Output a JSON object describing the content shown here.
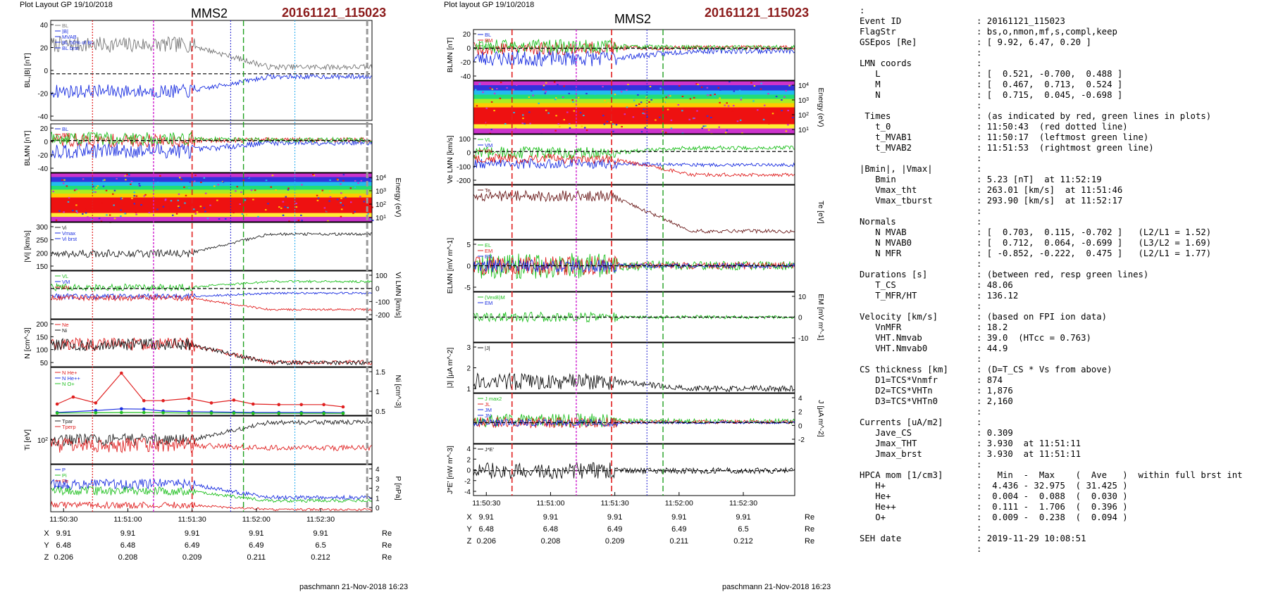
{
  "left_panel": {
    "corner_label": "Plot Layout GP 19/10/2018",
    "spacecraft": "MMS2",
    "event": "20161121_115023",
    "footer": "paschmann 21-Nov-2018 16:23"
  },
  "middle_panel": {
    "corner_label": "Plot layout GP 19/10/2018",
    "spacecraft": "MMS2",
    "event": "20161121_115023",
    "footer": "paschmann 21-Nov-2018 16:23"
  },
  "chart_data": [
    {
      "type": "line",
      "figure": "left",
      "x_ticks": [
        "11:50:30",
        "11:51:00",
        "11:51:30",
        "11:52:00",
        "11:52:30"
      ],
      "coords": {
        "rows": [
          "X",
          "Y",
          "Z"
        ],
        "unit": "Re",
        "values": [
          [
            "9.91",
            "9.91",
            "9.91",
            "9.91",
            "9.91"
          ],
          [
            "6.48",
            "6.48",
            "6.49",
            "6.49",
            "6.5"
          ],
          [
            "0.206",
            "0.208",
            "0.209",
            "0.211",
            "0.212"
          ]
        ]
      },
      "marker_colors": {
        "t0": "#e02020",
        "mvab": "#20a020",
        "magenta": "#d020d0",
        "blue": "#2020d0"
      },
      "panels": [
        {
          "name": "b-magnitude",
          "ylabel": "BL,|B| [nT]",
          "yticks": [
            "40",
            "20",
            "0",
            "-20",
            "-40"
          ],
          "ylim": [
            -48,
            55
          ],
          "legend": [
            "BL",
            "|B|",
            "MVAB",
            "BL 50% of BL",
            "BL brst"
          ],
          "ref_line": 0,
          "series": [
            {
              "name": "|B|",
              "color": "#777777",
              "base": 30,
              "amp": 8,
              "late": 7
            },
            {
              "name": "BL",
              "color": "#1a2ee0",
              "base": -18,
              "amp": 7,
              "late": -3
            }
          ]
        },
        {
          "name": "b-lmn",
          "ylabel": "BLMN [nT]",
          "yticks": [
            "20",
            "0",
            "-20",
            "-40"
          ],
          "ylim": [
            -48,
            25
          ],
          "legend": [
            "BL",
            "BM",
            "BN"
          ],
          "ref_line": 0,
          "series": [
            {
              "name": "BL",
              "color": "#1a2ee0",
              "base": -15,
              "amp": 12,
              "late": -3
            },
            {
              "name": "BM",
              "color": "#e02020",
              "base": 0,
              "amp": 10,
              "late": 1
            },
            {
              "name": "BN",
              "color": "#20c020",
              "base": 3,
              "amp": 10,
              "late": 1
            }
          ]
        },
        {
          "name": "ion-spectrogram",
          "ylabel": "Energy (eV)",
          "yticks": [
            "10^4",
            "10^3",
            "10^2",
            "10^1"
          ]
        },
        {
          "name": "ion-speed",
          "ylabel": "|Vi| [km/s]",
          "yticks": [
            "300",
            "250",
            "200",
            "150"
          ],
          "ylim": [
            120,
            305
          ],
          "legend": [
            "Vi",
            "Vmax",
            "Vi brst"
          ],
          "series": [
            {
              "name": "|Vi|",
              "color": "#222222",
              "base": 185,
              "amp": 15,
              "late": 260
            }
          ]
        },
        {
          "name": "ion-velocity",
          "ylabel": "Vi LMN [km/s]",
          "yticks": [
            "100",
            "0",
            "-100",
            "-200"
          ],
          "ylim": [
            -260,
            150
          ],
          "legend": [
            "VL",
            "VM",
            "VN"
          ],
          "ref_line": 0,
          "series": [
            {
              "name": "VL",
              "color": "#20c020",
              "base": 10,
              "amp": 30,
              "late": 60
            },
            {
              "name": "VM",
              "color": "#1a2ee0",
              "base": -70,
              "amp": 25,
              "late": -40
            },
            {
              "name": "VN",
              "color": "#e02020",
              "base": -80,
              "amp": 25,
              "late": -180
            }
          ]
        },
        {
          "name": "density",
          "ylabel": "N [cm^-3]",
          "yticks": [
            "200",
            "150",
            "100",
            "50"
          ],
          "ylim": [
            5,
            225
          ],
          "legend": [
            "Ne",
            "Ni"
          ],
          "series": [
            {
              "name": "Ne",
              "color": "#e02020",
              "base": 110,
              "amp": 30,
              "late": 25
            },
            {
              "name": "Ni",
              "color": "#111111",
              "base": 108,
              "amp": 28,
              "late": 24
            }
          ]
        },
        {
          "name": "hpca-density",
          "ylabel": "Ni [cm^-3]",
          "yticks": [
            "1.5",
            "1",
            "0.5"
          ],
          "ylim": [
            0,
            1.7
          ],
          "legend": [
            "N He+",
            "N He++",
            "N O+"
          ],
          "points": [
            {
              "name": "N He+",
              "color": "#e02020",
              "x": [
                0.02,
                0.07,
                0.14,
                0.22,
                0.29,
                0.35,
                0.43,
                0.5,
                0.57,
                0.63,
                0.71,
                0.78,
                0.85,
                0.91
              ],
              "y": [
                0.4,
                0.65,
                0.44,
                1.5,
                0.52,
                0.52,
                0.6,
                0.44,
                0.54,
                0.4,
                0.38,
                0.38,
                0.38,
                0.3
              ]
            },
            {
              "name": "N O+",
              "color": "#1a2ee0",
              "x": [
                0.02,
                0.14,
                0.22,
                0.29,
                0.35,
                0.43,
                0.5,
                0.57,
                0.63,
                0.71,
                0.78,
                0.85,
                0.91
              ],
              "y": [
                0.1,
                0.17,
                0.23,
                0.22,
                0.15,
                0.13,
                0.12,
                0.11,
                0.1,
                0.1,
                0.1,
                0.1,
                0.09
              ]
            },
            {
              "name": "N H+",
              "color": "#20c020",
              "x": [
                0.02,
                0.14,
                0.22,
                0.29,
                0.35,
                0.43,
                0.5,
                0.57,
                0.63,
                0.71,
                0.78,
                0.85,
                0.91
              ],
              "y": [
                0.08,
                0.09,
                0.1,
                0.1,
                0.09,
                0.08,
                0.08,
                0.08,
                0.07,
                0.07,
                0.07,
                0.07,
                0.07
              ]
            }
          ]
        },
        {
          "name": "ion-temperature",
          "ylabel": "Ti [eV]",
          "yticks": [
            "10^2"
          ],
          "ylim": [
            10,
            100
          ],
          "legend": [
            "Tpar",
            "Tperp"
          ],
          "series": [
            {
              "name": "Tpar",
              "color": "#222222",
              "base": 55,
              "amp": 12,
              "late": 88
            },
            {
              "name": "Tperp",
              "color": "#e02020",
              "base": 45,
              "amp": 14,
              "late": 40
            }
          ]
        },
        {
          "name": "pressure",
          "ylabel": "P [nPa]",
          "yticks": [
            "4",
            "3",
            "2",
            "1",
            "0"
          ],
          "ylim": [
            0,
            4.3
          ],
          "legend": [
            "P",
            "Pi",
            "Pe",
            "PB"
          ],
          "series": [
            {
              "name": "P",
              "color": "#1a2ee0",
              "base": 2.5,
              "amp": 0.5,
              "late": 1.3
            },
            {
              "name": "Pi",
              "color": "#20c020",
              "base": 1.9,
              "amp": 0.4,
              "late": 1.0
            },
            {
              "name": "PB",
              "color": "#e02020",
              "base": 0.6,
              "amp": 0.3,
              "late": 0.2
            }
          ]
        }
      ]
    },
    {
      "type": "line",
      "figure": "middle",
      "x_ticks": [
        "11:50:30",
        "11:51:00",
        "11:51:30",
        "11:52:00",
        "11:52:30"
      ],
      "coords": {
        "rows": [
          "X",
          "Y",
          "Z"
        ],
        "unit": "Re",
        "values": [
          [
            "9.91",
            "9.91",
            "9.91",
            "9.91",
            "9.91"
          ],
          [
            "6.48",
            "6.48",
            "6.49",
            "6.49",
            "6.5"
          ],
          [
            "0.206",
            "0.208",
            "0.209",
            "0.211",
            "0.212"
          ]
        ]
      },
      "panels": [
        {
          "name": "b-lmn",
          "ylabel": "BLMN [nT]",
          "yticks": [
            "20",
            "0",
            "-20",
            "-40"
          ],
          "ylim": [
            -48,
            28
          ],
          "legend": [
            "BL",
            "BM",
            "BN"
          ],
          "ref_line": 0,
          "series": [
            {
              "name": "BL",
              "color": "#1a2ee0",
              "base": -15,
              "amp": 12,
              "late": -4
            },
            {
              "name": "BM",
              "color": "#e02020",
              "base": 0,
              "amp": 10,
              "late": 1
            },
            {
              "name": "BN",
              "color": "#20c020",
              "base": 3,
              "amp": 10,
              "late": 1
            }
          ]
        },
        {
          "name": "electron-spectrogram",
          "ylabel": "Energy (eV)",
          "yticks": [
            "10^4",
            "10^3",
            "10^2",
            "10^1"
          ]
        },
        {
          "name": "electron-velocity",
          "ylabel": "Ve LMN [km/s]",
          "yticks": [
            "100",
            "0",
            "-100",
            "-200"
          ],
          "ylim": [
            -270,
            140
          ],
          "legend": [
            "VL",
            "VM",
            "VN"
          ],
          "ref_line": 0,
          "series": [
            {
              "name": "VL",
              "color": "#20c020",
              "base": -10,
              "amp": 50,
              "late": 30
            },
            {
              "name": "VM",
              "color": "#1a2ee0",
              "base": -100,
              "amp": 40,
              "late": -110
            },
            {
              "name": "VN",
              "color": "#e02020",
              "base": -60,
              "amp": 40,
              "late": -190
            }
          ]
        },
        {
          "name": "electron-temperature",
          "ylabel": "Te [eV]",
          "yticks": [],
          "ylim": [
            0,
            100
          ],
          "legend": [
            "Te"
          ],
          "series": [
            {
              "name": "Te",
              "color": "#6a1a1a",
              "base": 80,
              "amp": 10,
              "late": 15
            }
          ]
        },
        {
          "name": "electric-field",
          "ylabel": "ELMN [mV m^-1]",
          "yticks": [
            "5",
            "0",
            "-5"
          ],
          "ylim": [
            -8,
            8
          ],
          "legend": [
            "EL",
            "EM",
            "EN"
          ],
          "ref_line": 0,
          "series": [
            {
              "name": "EL",
              "color": "#20c020",
              "base": 0,
              "amp": 4,
              "late": 0
            },
            {
              "name": "EM",
              "color": "#e02020",
              "base": 0,
              "amp": 3,
              "late": 0
            },
            {
              "name": "EN",
              "color": "#1a2ee0",
              "base": 0,
              "amp": 2,
              "late": 0
            }
          ]
        },
        {
          "name": "vexb",
          "ylabel": "EM [mV m^-1]",
          "yticks": [
            "10",
            "0",
            "-10"
          ],
          "ylim": [
            -15,
            15
          ],
          "legend": [
            "(VexB)M",
            "EM"
          ],
          "ref_line": 0,
          "series": [
            {
              "name": "EM",
              "color": "#20c020",
              "base": 0,
              "amp": 3,
              "late": 0
            }
          ]
        },
        {
          "name": "current-magnitude",
          "ylabel": "|J| [μA m^-2]",
          "yticks": [
            "3",
            "2",
            "1"
          ],
          "ylim": [
            0,
            3.6
          ],
          "legend": [
            "|J|"
          ],
          "series": [
            {
              "name": "|J|",
              "color": "#111111",
              "base": 0.8,
              "amp": 0.6,
              "late": 0.3
            }
          ]
        },
        {
          "name": "current-lmn",
          "ylabel": "J [μA m^-2]",
          "yticks": [
            "4",
            "2",
            "0",
            "-2"
          ],
          "ylim": [
            -3,
            4.2
          ],
          "legend": [
            "J max2",
            "JL",
            "JM",
            "JN"
          ],
          "ref_line": 0,
          "series": [
            {
              "name": "JL",
              "color": "#20c020",
              "base": 0.3,
              "amp": 1.0,
              "late": 0.2
            },
            {
              "name": "JM",
              "color": "#e02020",
              "base": 0.0,
              "amp": 0.8,
              "late": 0.1
            },
            {
              "name": "JN",
              "color": "#1a2ee0",
              "base": 0.0,
              "amp": 0.5,
              "late": 0.0
            }
          ]
        },
        {
          "name": "jdote",
          "ylabel": "J*E' [nW m^-3]",
          "yticks": [
            "4",
            "2",
            "0",
            "-2",
            "-4"
          ],
          "ylim": [
            -4.5,
            4.8
          ],
          "legend": [
            "J*E'"
          ],
          "ref_line": 0,
          "series": [
            {
              "name": "J*E'",
              "color": "#111111",
              "base": 0,
              "amp": 1.5,
              "late": 0
            }
          ]
        }
      ]
    }
  ],
  "summary": [
    {
      "k": ":",
      "v": ""
    },
    {
      "k": "Event ID",
      "v": ": 20161121_115023"
    },
    {
      "k": "FlagStr",
      "v": ": bs,o,nmon,mf,s,compl,keep"
    },
    {
      "k": "GSEpos [Re]",
      "v": ": [ 9.92, 6.47, 0.20 ]"
    },
    {
      "k": "",
      "v": ":"
    },
    {
      "k": "LMN coords",
      "v": ":"
    },
    {
      "k": "   L",
      "v": ": [  0.521, -0.700,  0.488 ]"
    },
    {
      "k": "   M",
      "v": ": [  0.467,  0.713,  0.524 ]"
    },
    {
      "k": "   N",
      "v": ": [  0.715,  0.045, -0.698 ]"
    },
    {
      "k": "",
      "v": ":"
    },
    {
      "k": " Times",
      "v": ": (as indicated by red, green lines in plots)"
    },
    {
      "k": "   t_0",
      "v": ": 11:50:43  (red dotted line)"
    },
    {
      "k": "   t_MVAB1",
      "v": ": 11:50:17  (leftmost green line)"
    },
    {
      "k": "   t_MVAB2",
      "v": ": 11:51:53  (rightmost green line)"
    },
    {
      "k": "",
      "v": ":"
    },
    {
      "k": "|Bmin|, |Vmax|",
      "v": ":"
    },
    {
      "k": "   Bmin",
      "v": ": 5.23 [nT]  at 11:52:19"
    },
    {
      "k": "   Vmax_tht",
      "v": ": 263.01 [km/s]  at 11:51:46"
    },
    {
      "k": "   Vmax_tburst",
      "v": ": 293.90 [km/s]  at 11:52:17"
    },
    {
      "k": "",
      "v": ":"
    },
    {
      "k": "Normals",
      "v": ":"
    },
    {
      "k": "   N MVAB",
      "v": ": [  0.703,  0.115, -0.702 ]   (L2/L1 = 1.52)"
    },
    {
      "k": "   N MVAB0",
      "v": ": [  0.712,  0.064, -0.699 ]   (L3/L2 = 1.69)"
    },
    {
      "k": "   N MFR",
      "v": ": [ -0.852, -0.222,  0.475 ]   (L2/L1 = 1.77)"
    },
    {
      "k": "",
      "v": ":"
    },
    {
      "k": "Durations [s]",
      "v": ": (between red, resp green lines)"
    },
    {
      "k": "   T_CS",
      "v": ": 48.06"
    },
    {
      "k": "   T_MFR/HT",
      "v": ": 136.12"
    },
    {
      "k": "",
      "v": ":"
    },
    {
      "k": "Velocity [km/s]",
      "v": ": (based on FPI ion data)"
    },
    {
      "k": "   VnMFR",
      "v": ": 18.2"
    },
    {
      "k": "   VHT.Nmvab",
      "v": ": 39.0  (HTcc = 0.763)"
    },
    {
      "k": "   VHT.Nmvab0",
      "v": ": 44.9"
    },
    {
      "k": "",
      "v": ":"
    },
    {
      "k": "CS thickness [km]",
      "v": ": (D=T_CS * Vs from above)"
    },
    {
      "k": "   D1=TCS*Vnmfr",
      "v": ": 874"
    },
    {
      "k": "   D2=TCS*VHTn",
      "v": ": 1,876"
    },
    {
      "k": "   D3=TCS*VHTn0",
      "v": ": 2,160"
    },
    {
      "k": "",
      "v": ":"
    },
    {
      "k": "Currents [uA/m2]",
      "v": ":"
    },
    {
      "k": "   Jave_CS",
      "v": ": 0.309"
    },
    {
      "k": "   Jmax_THT",
      "v": ": 3.930  at 11:51:11"
    },
    {
      "k": "   Jmax_brst",
      "v": ": 3.930  at 11:51:11"
    },
    {
      "k": "",
      "v": ":"
    },
    {
      "k": "HPCA mom [1/cm3]",
      "v": ":   Min  -  Max    (  Ave   )  within full brst int"
    },
    {
      "k": "   H+",
      "v": ":  4.436 - 32.975  ( 31.425 )"
    },
    {
      "k": "   He+",
      "v": ":  0.004 -  0.088  (  0.030 )"
    },
    {
      "k": "   He++",
      "v": ":  0.111 -  1.706  (  0.396 )"
    },
    {
      "k": "   O+",
      "v": ":  0.009 -  0.238  (  0.094 )"
    },
    {
      "k": "",
      "v": ":"
    },
    {
      "k": "SEH date",
      "v": ": 2019-11-29 10:08:51"
    },
    {
      "k": "",
      "v": ":"
    }
  ]
}
